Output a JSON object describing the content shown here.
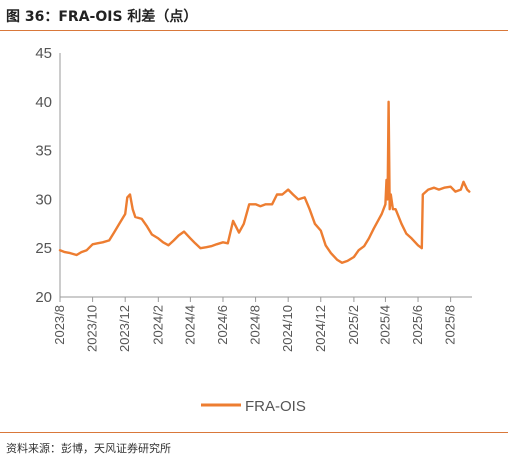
{
  "page": {
    "title": "图 36：FRA-OIS 利差（点）",
    "source": "资料来源：彭博，天风证券研究所"
  },
  "colors": {
    "accent": "#d9783a",
    "line": "#ed7d31",
    "axis": "#999999",
    "text": "#555555"
  },
  "chart_data": {
    "type": "line",
    "title": "",
    "xlabel": "",
    "ylabel": "",
    "ylim": [
      20,
      45
    ],
    "yticks": [
      20,
      25,
      30,
      35,
      40,
      45
    ],
    "xlim": [
      "2023-08-01",
      "2025-09-10"
    ],
    "xticks": [
      "2023/8",
      "2023/10",
      "2023/12",
      "2024/2",
      "2024/4",
      "2024/6",
      "2024/8",
      "2024/10",
      "2024/12",
      "2025/2",
      "2025/4",
      "2025/6",
      "2025/8"
    ],
    "xtick_dates": [
      "2023-08-01",
      "2023-10-01",
      "2023-12-01",
      "2024-02-01",
      "2024-04-01",
      "2024-06-01",
      "2024-08-01",
      "2024-10-01",
      "2024-12-01",
      "2025-02-01",
      "2025-04-01",
      "2025-06-01",
      "2025-08-01"
    ],
    "grid": false,
    "legend": "bottom-center",
    "series": [
      {
        "name": "FRA-OIS",
        "x": [
          "2023-08-01",
          "2023-08-10",
          "2023-08-20",
          "2023-09-01",
          "2023-09-10",
          "2023-09-20",
          "2023-10-01",
          "2023-10-10",
          "2023-10-20",
          "2023-11-01",
          "2023-11-10",
          "2023-11-20",
          "2023-12-01",
          "2023-12-05",
          "2023-12-10",
          "2023-12-15",
          "2023-12-20",
          "2024-01-01",
          "2024-01-10",
          "2024-01-20",
          "2024-02-01",
          "2024-02-10",
          "2024-02-20",
          "2024-03-01",
          "2024-03-10",
          "2024-03-20",
          "2024-04-01",
          "2024-04-10",
          "2024-04-20",
          "2024-05-01",
          "2024-05-10",
          "2024-05-20",
          "2024-06-01",
          "2024-06-10",
          "2024-06-20",
          "2024-07-01",
          "2024-07-10",
          "2024-07-20",
          "2024-08-01",
          "2024-08-10",
          "2024-08-20",
          "2024-09-01",
          "2024-09-10",
          "2024-09-20",
          "2024-10-01",
          "2024-10-10",
          "2024-10-20",
          "2024-11-01",
          "2024-11-10",
          "2024-11-20",
          "2024-12-01",
          "2024-12-10",
          "2024-12-20",
          "2025-01-01",
          "2025-01-10",
          "2025-01-20",
          "2025-02-01",
          "2025-02-10",
          "2025-02-20",
          "2025-03-01",
          "2025-03-10",
          "2025-03-20",
          "2025-03-25",
          "2025-04-01",
          "2025-04-03",
          "2025-04-05",
          "2025-04-07",
          "2025-04-09",
          "2025-04-11",
          "2025-04-15",
          "2025-04-20",
          "2025-05-01",
          "2025-05-10",
          "2025-05-20",
          "2025-06-01",
          "2025-06-08",
          "2025-06-10",
          "2025-06-20",
          "2025-07-01",
          "2025-07-10",
          "2025-07-20",
          "2025-08-01",
          "2025-08-10",
          "2025-08-20",
          "2025-08-25",
          "2025-09-01",
          "2025-09-05"
        ],
        "values": [
          24.8,
          24.6,
          24.5,
          24.3,
          24.6,
          24.8,
          25.4,
          25.5,
          25.6,
          25.8,
          26.6,
          27.5,
          28.5,
          30.2,
          30.5,
          29.0,
          28.2,
          28.0,
          27.3,
          26.4,
          26.0,
          25.6,
          25.3,
          25.8,
          26.3,
          26.7,
          26.0,
          25.5,
          25.0,
          25.1,
          25.2,
          25.4,
          25.6,
          25.5,
          27.8,
          26.6,
          27.5,
          29.5,
          29.5,
          29.3,
          29.5,
          29.5,
          30.5,
          30.5,
          31.0,
          30.5,
          30.0,
          30.2,
          29.0,
          27.5,
          26.8,
          25.3,
          24.5,
          23.8,
          23.5,
          23.7,
          24.1,
          24.8,
          25.2,
          26.0,
          27.0,
          28.0,
          28.5,
          29.5,
          32.0,
          30.0,
          40.0,
          29.0,
          30.5,
          29.0,
          29.0,
          27.5,
          26.5,
          26.0,
          25.3,
          25.0,
          30.5,
          31.0,
          31.2,
          31.0,
          31.2,
          31.3,
          30.8,
          31.0,
          31.8,
          31.0,
          30.8
        ]
      }
    ]
  }
}
